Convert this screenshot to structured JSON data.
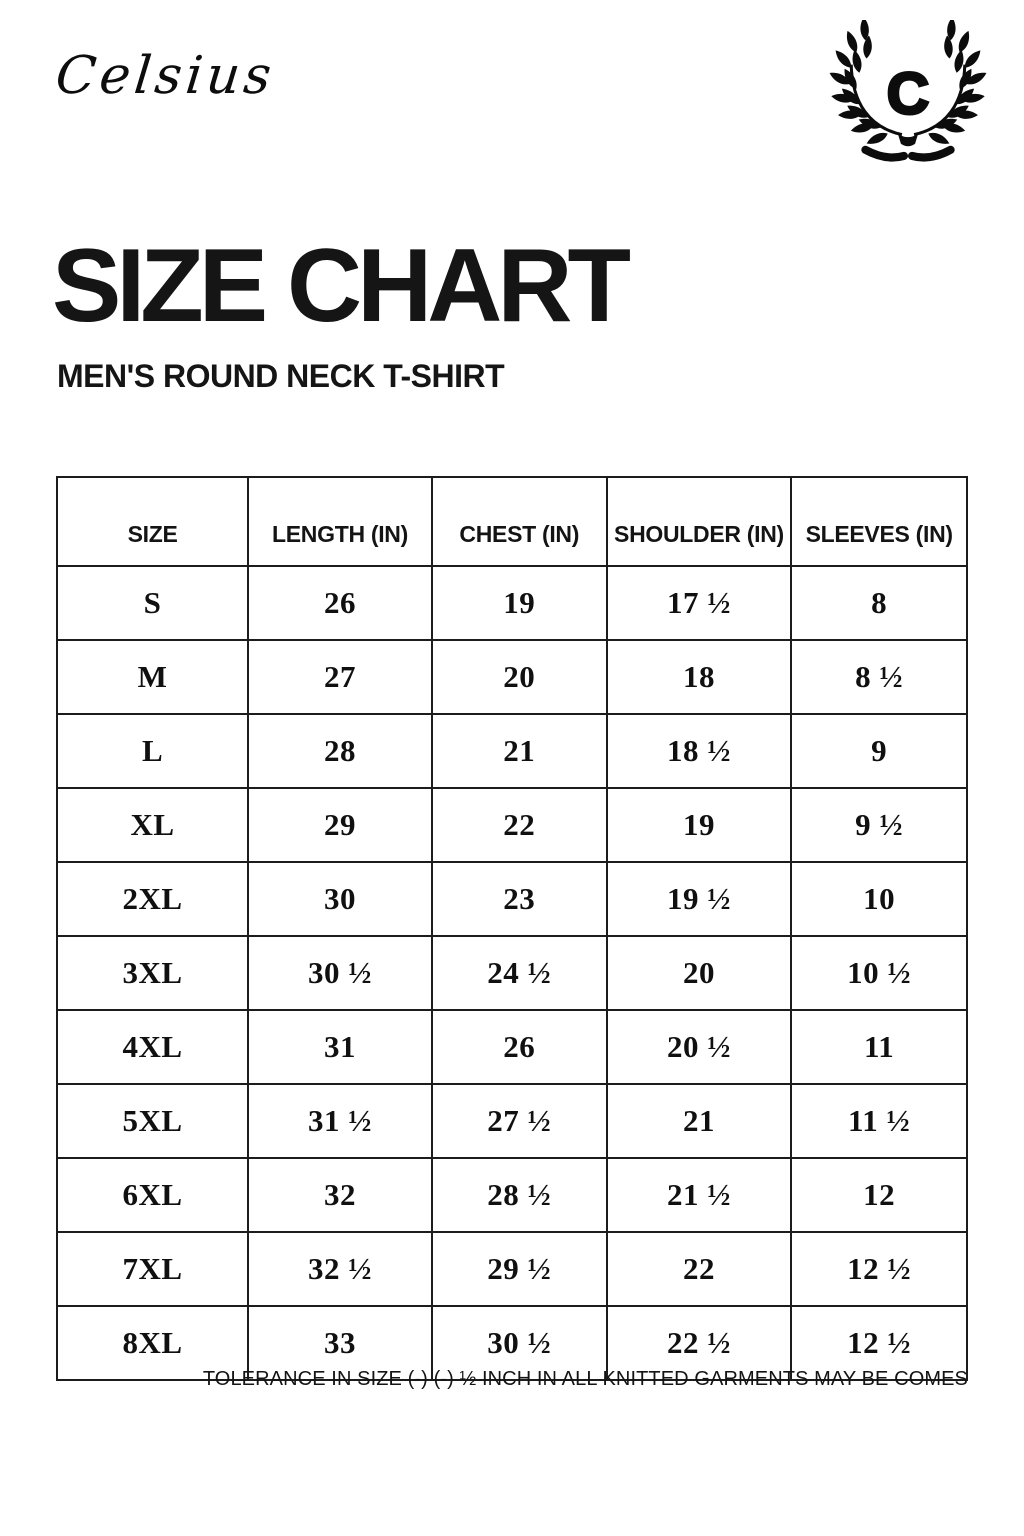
{
  "brand": {
    "name": "Celsius",
    "crest_letter": "C"
  },
  "header": {
    "title": "SIZE CHART",
    "subtitle": "MEN'S ROUND NECK T-SHIRT"
  },
  "table": {
    "headers": [
      "SIZE",
      "LENGTH (IN)",
      "CHEST (IN)",
      "SHOULDER (IN)",
      "SLEEVES (IN)"
    ],
    "rows": [
      [
        "S",
        "26",
        "19",
        "17 ½",
        "8"
      ],
      [
        "M",
        "27",
        "20",
        "18",
        "8 ½"
      ],
      [
        "L",
        "28",
        "21",
        "18 ½",
        "9"
      ],
      [
        "XL",
        "29",
        "22",
        "19",
        "9 ½"
      ],
      [
        "2XL",
        "30",
        "23",
        "19 ½",
        "10"
      ],
      [
        "3XL",
        "30 ½",
        "24 ½",
        "20",
        "10 ½"
      ],
      [
        "4XL",
        "31",
        "26",
        "20 ½",
        "11"
      ],
      [
        "5XL",
        "31 ½",
        "27 ½",
        "21",
        "11 ½"
      ],
      [
        "6XL",
        "32",
        "28 ½",
        "21 ½",
        "12"
      ],
      [
        "7XL",
        "32 ½",
        "29 ½",
        "22",
        "12 ½"
      ],
      [
        "8XL",
        "33",
        "30 ½",
        "22 ½",
        "12 ½"
      ]
    ],
    "footnote": "TOLERANCE IN SIZE (-) (-) ½ INCH IN ALL KNITTED GARMENTS MAY BE COMES"
  },
  "icons": {
    "crest": "laurel-wreath-icon"
  },
  "colors": {
    "text": "#111111",
    "border": "#1c1c1c",
    "background": "#ffffff"
  }
}
